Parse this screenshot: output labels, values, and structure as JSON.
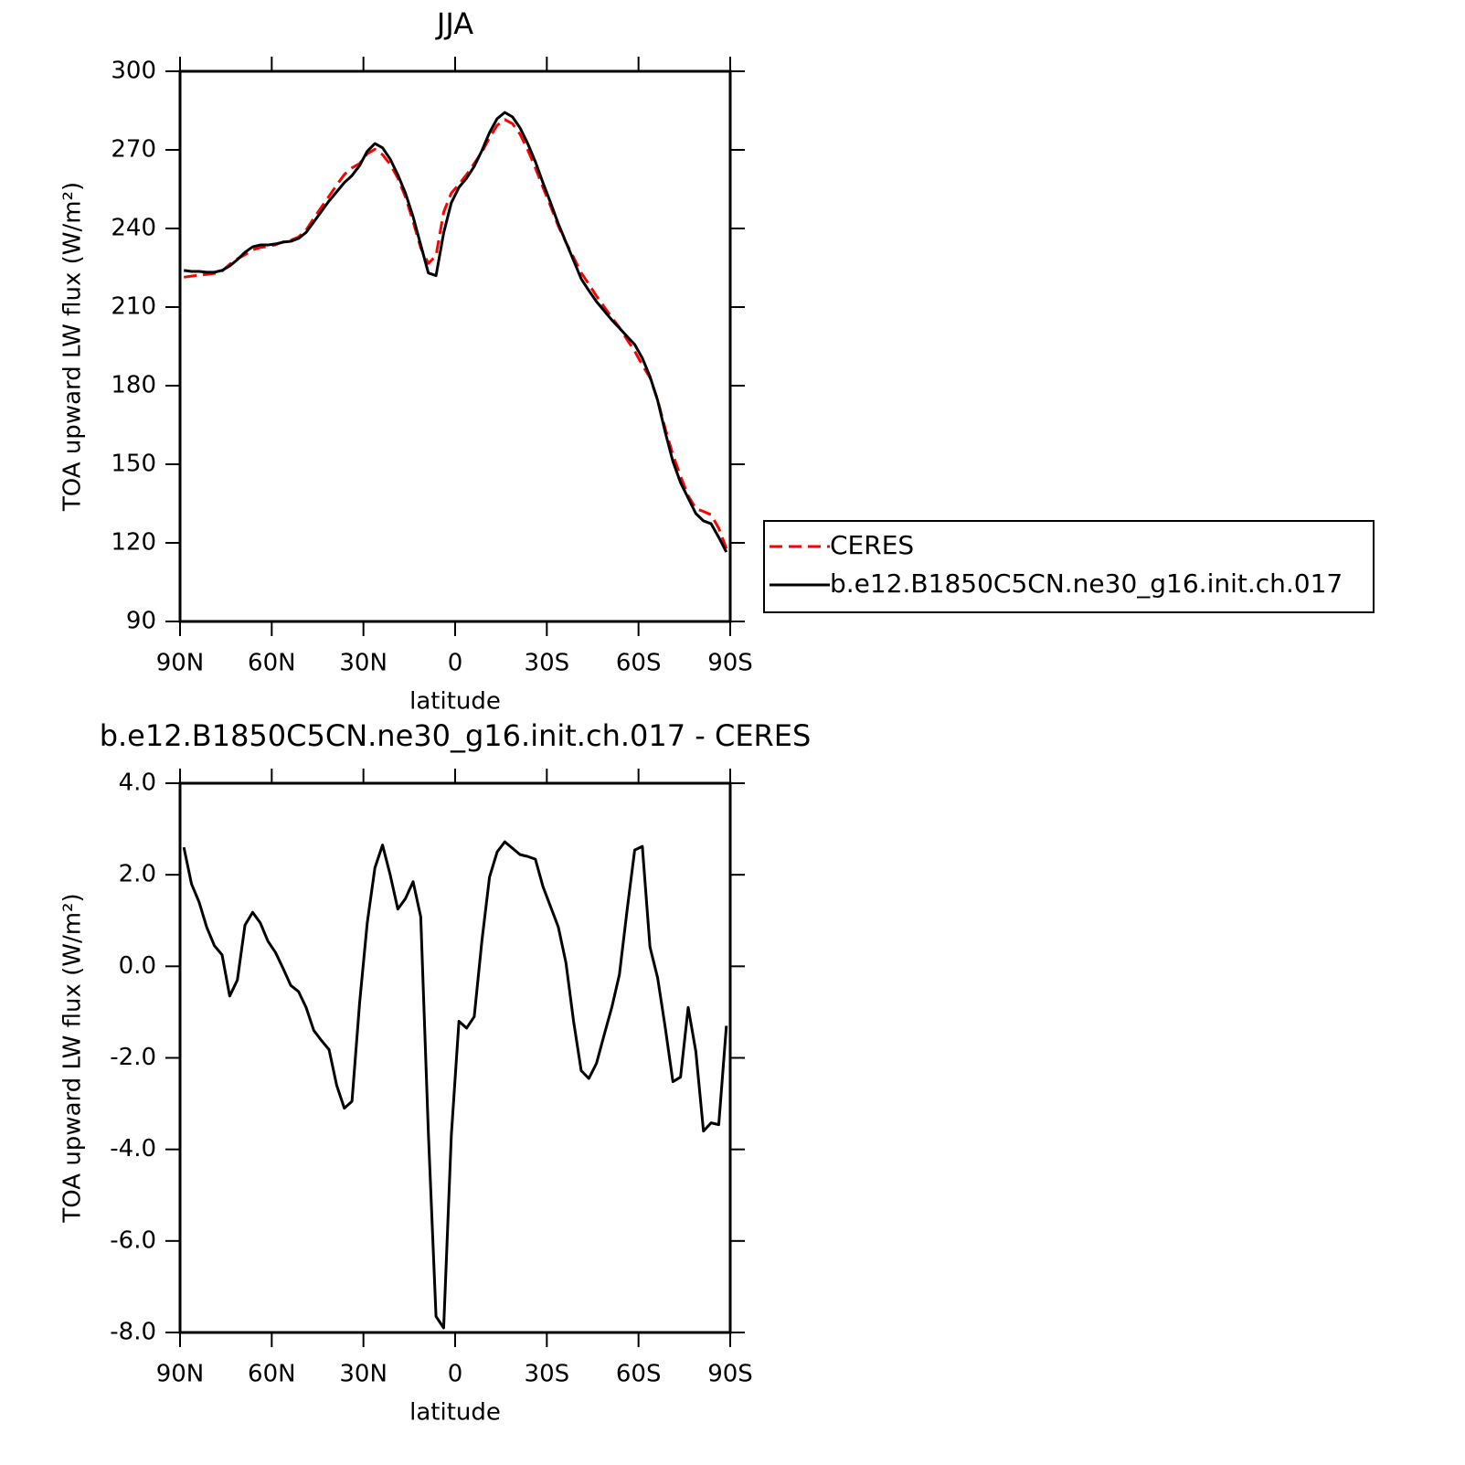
{
  "chart_data": [
    {
      "type": "line",
      "title": "JJA",
      "xlabel": "latitude",
      "ylabel": "TOA upward LW flux (W/m²)",
      "x": [
        88.75,
        86.25,
        83.75,
        81.25,
        78.75,
        76.25,
        73.75,
        71.25,
        68.75,
        66.25,
        63.75,
        61.25,
        58.75,
        56.25,
        53.75,
        51.25,
        48.75,
        46.25,
        43.75,
        41.25,
        38.75,
        36.25,
        33.75,
        31.25,
        28.75,
        26.25,
        23.75,
        21.25,
        18.75,
        16.25,
        13.75,
        11.25,
        8.75,
        6.25,
        3.75,
        1.25,
        -1.25,
        -3.75,
        -6.25,
        -8.75,
        -11.25,
        -13.75,
        -16.25,
        -18.75,
        -21.25,
        -23.75,
        -26.25,
        -28.75,
        -31.25,
        -33.75,
        -36.25,
        -38.75,
        -41.25,
        -43.75,
        -46.25,
        -48.75,
        -51.25,
        -53.75,
        -56.25,
        -58.75,
        -61.25,
        -63.75,
        -66.25,
        -68.75,
        -71.25,
        -73.75,
        -76.25,
        -78.75,
        -81.25,
        -83.75,
        -86.25,
        -88.75
      ],
      "series": [
        {
          "name": "CERES",
          "color": "#ff0000",
          "dash": "dashed",
          "values": [
            221.4,
            221.8,
            222.2,
            222.45,
            222.85,
            223.75,
            226.35,
            228.4,
            230.0,
            231.82,
            232.75,
            233.15,
            233.8,
            234.85,
            235.52,
            236.75,
            239.4,
            243.9,
            248.12,
            252.32,
            256.6,
            260.6,
            263.15,
            264.8,
            268.55,
            270.25,
            268.15,
            264.5,
            259.25,
            252.02,
            242.65,
            232.62,
            226.65,
            229.65,
            246.2,
            253.5,
            256.9,
            260.55,
            264.8,
            269.15,
            274.65,
            279.4,
            281.58,
            280.02,
            275.96,
            270.0,
            263.16,
            255.66,
            248.5,
            240.94,
            234.72,
            229.0,
            223.08,
            218.75,
            214.22,
            210.1,
            206.0,
            202.18,
            197.58,
            193.16,
            187.88,
            183.08,
            174.65,
            163.54,
            153.62,
            145.42,
            138.0,
            133.06,
            132.0,
            130.72,
            125.56,
            117.8
          ]
        },
        {
          "name": "b.e12.B1850C5CN.ne30_g16.init.ch.017",
          "color": "#000000",
          "dash": "solid",
          "values": [
            224.0,
            223.6,
            223.6,
            223.3,
            223.3,
            224.0,
            225.7,
            228.1,
            230.9,
            233.0,
            233.7,
            233.7,
            234.1,
            234.8,
            235.1,
            236.2,
            238.5,
            242.5,
            246.5,
            250.5,
            254.0,
            257.5,
            260.2,
            264.0,
            269.5,
            272.4,
            270.8,
            266.5,
            260.5,
            253.5,
            244.5,
            233.7,
            223.0,
            222.0,
            238.3,
            249.8,
            255.7,
            259.2,
            263.7,
            269.7,
            276.6,
            281.9,
            284.3,
            282.6,
            278.4,
            272.4,
            265.5,
            257.4,
            249.8,
            241.8,
            234.8,
            227.8,
            220.8,
            216.3,
            212.1,
            208.6,
            205.1,
            202.0,
            198.8,
            195.7,
            190.5,
            183.5,
            174.4,
            162.2,
            151.1,
            143.0,
            137.1,
            131.2,
            128.4,
            127.3,
            122.1,
            116.5
          ]
        }
      ],
      "xlim": [
        90,
        -90
      ],
      "xticks": [
        {
          "value": 90,
          "label": "90N"
        },
        {
          "value": 60,
          "label": "60N"
        },
        {
          "value": 30,
          "label": "30N"
        },
        0,
        {
          "value": -30,
          "label": "30S"
        },
        {
          "value": -60,
          "label": "60S"
        },
        {
          "value": -90,
          "label": "90S"
        }
      ],
      "ylim": [
        90,
        300
      ],
      "yticks": [
        90,
        120,
        150,
        180,
        210,
        240,
        270,
        300
      ],
      "legend": "right"
    },
    {
      "type": "line",
      "title": "b.e12.B1850C5CN.ne30_g16.init.ch.017 - CERES",
      "xlabel": "latitude",
      "ylabel": "TOA upward LW flux (W/m²)",
      "x": [
        88.75,
        86.25,
        83.75,
        81.25,
        78.75,
        76.25,
        73.75,
        71.25,
        68.75,
        66.25,
        63.75,
        61.25,
        58.75,
        56.25,
        53.75,
        51.25,
        48.75,
        46.25,
        43.75,
        41.25,
        38.75,
        36.25,
        33.75,
        31.25,
        28.75,
        26.25,
        23.75,
        21.25,
        18.75,
        16.25,
        13.75,
        11.25,
        8.75,
        6.25,
        3.75,
        1.25,
        -1.25,
        -3.75,
        -6.25,
        -8.75,
        -11.25,
        -13.75,
        -16.25,
        -18.75,
        -21.25,
        -23.75,
        -26.25,
        -28.75,
        -31.25,
        -33.75,
        -36.25,
        -38.75,
        -41.25,
        -43.75,
        -46.25,
        -48.75,
        -51.25,
        -53.75,
        -56.25,
        -58.75,
        -61.25,
        -63.75,
        -66.25,
        -68.75,
        -71.25,
        -73.75,
        -76.25,
        -78.75,
        -81.25,
        -83.75,
        -86.25,
        -88.75
      ],
      "values": [
        2.6,
        1.8,
        1.4,
        0.85,
        0.45,
        0.25,
        -0.65,
        -0.3,
        0.9,
        1.18,
        0.95,
        0.55,
        0.3,
        -0.05,
        -0.42,
        -0.55,
        -0.9,
        -1.4,
        -1.62,
        -1.82,
        -2.6,
        -3.1,
        -2.95,
        -0.8,
        0.95,
        2.15,
        2.65,
        2.0,
        1.25,
        1.48,
        1.85,
        1.08,
        -3.65,
        -7.65,
        -7.9,
        -3.7,
        -1.2,
        -1.35,
        -1.1,
        0.55,
        1.95,
        2.5,
        2.72,
        2.58,
        2.44,
        2.4,
        2.34,
        1.74,
        1.3,
        0.86,
        0.08,
        -1.2,
        -2.28,
        -2.45,
        -2.12,
        -1.5,
        -0.9,
        -0.18,
        1.22,
        2.54,
        2.62,
        0.42,
        -0.25,
        -1.34,
        -2.52,
        -2.42,
        -0.9,
        -1.86,
        -3.6,
        -3.42,
        -3.46,
        -1.3
      ],
      "color": "#000000",
      "xlim": [
        90,
        -90
      ],
      "xticks": [
        {
          "value": 90,
          "label": "90N"
        },
        {
          "value": 60,
          "label": "60N"
        },
        {
          "value": 30,
          "label": "30N"
        },
        0,
        {
          "value": -30,
          "label": "30S"
        },
        {
          "value": -60,
          "label": "60S"
        },
        {
          "value": -90,
          "label": "90S"
        }
      ],
      "ylim": [
        -8,
        4
      ],
      "yticks": [
        {
          "value": -8,
          "label": "-8.0"
        },
        {
          "value": -6,
          "label": "-6.0"
        },
        {
          "value": -4,
          "label": "-4.0"
        },
        {
          "value": -2,
          "label": "-2.0"
        },
        {
          "value": 0,
          "label": "0.0"
        },
        {
          "value": 2,
          "label": "2.0"
        },
        {
          "value": 4,
          "label": "4.0"
        }
      ]
    }
  ]
}
